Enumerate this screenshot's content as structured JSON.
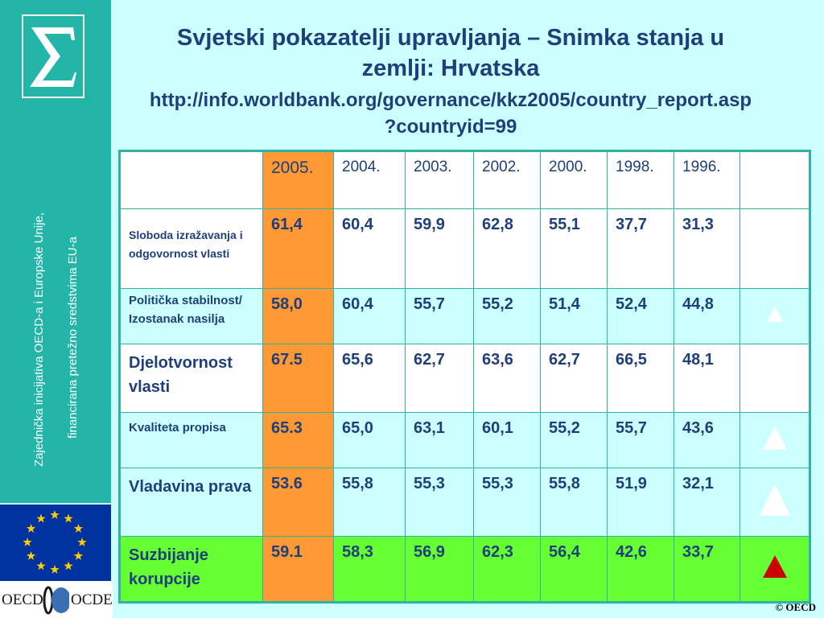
{
  "header": {
    "title_line1": "Svjetski pokazatelji upravljanja – Snimka stanja u",
    "title_line2": "zemlji: Hrvatska",
    "url_line1": "http://info.worldbank.org/governance/kkz2005/country_report.asp",
    "url_line2": "?countryid=99"
  },
  "sidebar": {
    "vertical_text_line1": "Zajednička inicijativa OECD-a i Europske Unije,",
    "vertical_text_line2": "financirana pretežno sredstvima EU-a",
    "oecd_left": "OECD",
    "oecd_right": "OCDE"
  },
  "table": {
    "years": [
      "2005.",
      "2004.",
      "2003.",
      "2002.",
      "2000.",
      "1998.",
      "1996."
    ],
    "rows": [
      {
        "label": "Sloboda izražavanja i odgovornost vlasti",
        "values": [
          "61,4",
          "60,4",
          "59,9",
          "62,8",
          "55,1",
          "37,7",
          "31,3"
        ],
        "trend": "up"
      },
      {
        "label": "Politička stabilnost/ Izostanak nasilja",
        "values": [
          "58,0",
          "60,4",
          "55,7",
          "55,2",
          "51,4",
          "52,4",
          "44,8"
        ],
        "trend": "up"
      },
      {
        "label": "Djelotvornost vlasti",
        "values": [
          "67.5",
          "65,6",
          "62,7",
          "63,6",
          "62,7",
          "66,5",
          "48,1"
        ],
        "trend": "up"
      },
      {
        "label": "Kvaliteta propisa",
        "values": [
          "65.3",
          "65,0",
          "63,1",
          "60,1",
          "55,2",
          "55,7",
          "43,6"
        ],
        "trend": "up"
      },
      {
        "label": "Vladavina prava",
        "values": [
          "53.6",
          "55,8",
          "55,3",
          "55,3",
          "55,8",
          "51,9",
          "32,1"
        ],
        "trend": "up"
      },
      {
        "label": "Suzbijanje korupcije",
        "values": [
          "59.1",
          "58,3",
          "56,9",
          "62,3",
          "56,4",
          "42,6",
          "33,7"
        ],
        "trend": "up"
      }
    ]
  },
  "colors": {
    "highlight_2005": "#ff9933",
    "highlight_row": "#66ff33",
    "trend_red": "#cc0000",
    "sidebar": "#22b5a8",
    "background": "#ccffff"
  },
  "footer": {
    "copyright": "© OECD"
  }
}
